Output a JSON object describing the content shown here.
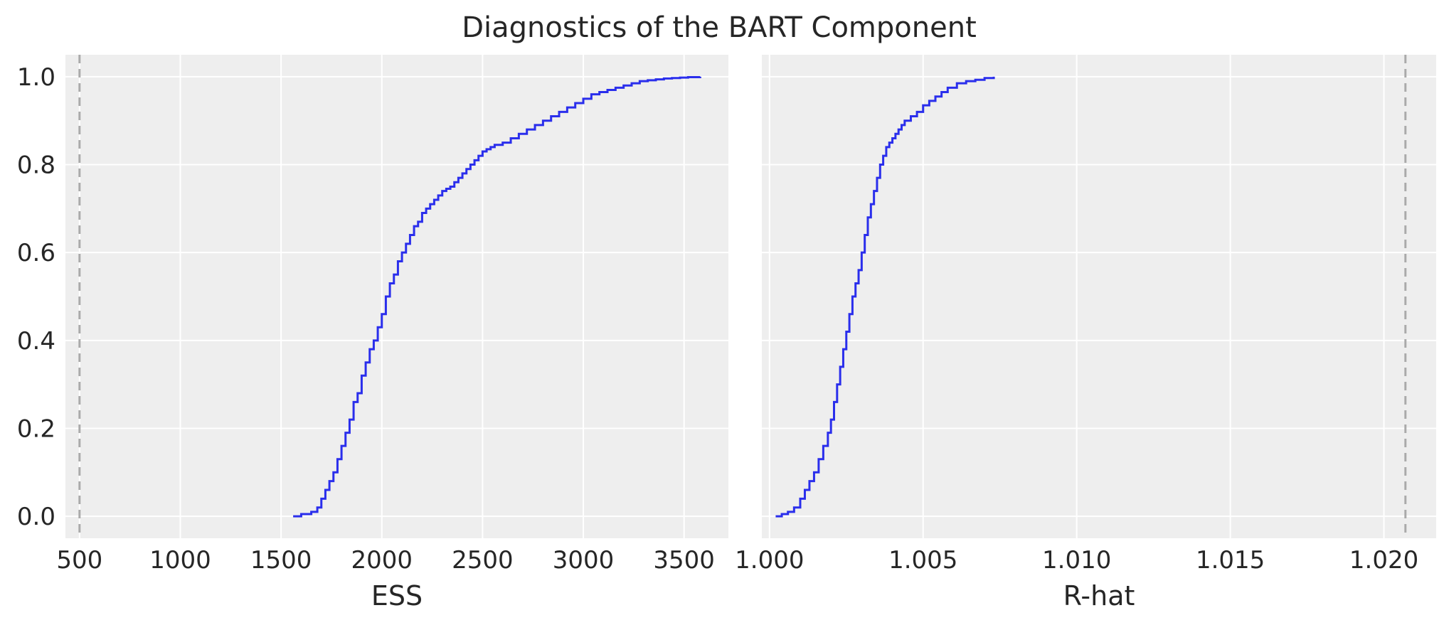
{
  "figure": {
    "title": "Diagnostics of the BART Component",
    "line_color": "#2a2eec",
    "reference_color": "#aaaaaa",
    "panel_bg": "#eeeeee"
  },
  "chart_data": [
    {
      "type": "line",
      "subtype": "ecdf-step",
      "xlabel": "ESS",
      "ylabel": "",
      "xlim": [
        430,
        3720
      ],
      "ylim": [
        -0.05,
        1.05
      ],
      "xticks": [
        500,
        1000,
        1500,
        2000,
        2500,
        3000,
        3500
      ],
      "xtick_labels": [
        "500",
        "1000",
        "1500",
        "2000",
        "2500",
        "3000",
        "3500"
      ],
      "yticks": [
        0.0,
        0.2,
        0.4,
        0.6,
        0.8,
        1.0
      ],
      "ytick_labels": [
        "0.0",
        "0.2",
        "0.4",
        "0.6",
        "0.8",
        "1.0"
      ],
      "reference_line_x": 500,
      "grid": true,
      "series": [
        {
          "x": [
            1560,
            1600,
            1650,
            1680,
            1700,
            1720,
            1740,
            1760,
            1780,
            1800,
            1820,
            1840,
            1860,
            1880,
            1900,
            1920,
            1940,
            1960,
            1980,
            2000,
            2020,
            2040,
            2060,
            2080,
            2100,
            2120,
            2140,
            2160,
            2180,
            2200,
            2220,
            2240,
            2260,
            2280,
            2300,
            2320,
            2340,
            2360,
            2380,
            2400,
            2420,
            2440,
            2460,
            2480,
            2500,
            2520,
            2540,
            2560,
            2600,
            2640,
            2680,
            2720,
            2760,
            2800,
            2840,
            2880,
            2920,
            2960,
            3000,
            3040,
            3080,
            3120,
            3160,
            3200,
            3240,
            3280,
            3320,
            3360,
            3400,
            3440,
            3480,
            3520,
            3580
          ],
          "y": [
            0.0,
            0.005,
            0.01,
            0.02,
            0.04,
            0.06,
            0.08,
            0.1,
            0.13,
            0.16,
            0.19,
            0.22,
            0.26,
            0.28,
            0.32,
            0.35,
            0.38,
            0.4,
            0.43,
            0.46,
            0.5,
            0.53,
            0.55,
            0.58,
            0.6,
            0.62,
            0.64,
            0.66,
            0.67,
            0.69,
            0.7,
            0.71,
            0.72,
            0.73,
            0.74,
            0.745,
            0.75,
            0.76,
            0.77,
            0.78,
            0.79,
            0.8,
            0.81,
            0.82,
            0.83,
            0.835,
            0.84,
            0.845,
            0.85,
            0.86,
            0.87,
            0.88,
            0.89,
            0.9,
            0.91,
            0.92,
            0.93,
            0.94,
            0.95,
            0.96,
            0.965,
            0.97,
            0.975,
            0.98,
            0.985,
            0.99,
            0.992,
            0.994,
            0.996,
            0.997,
            0.998,
            0.999,
            1.0
          ]
        }
      ]
    },
    {
      "type": "line",
      "subtype": "ecdf-step",
      "xlabel": "R-hat",
      "ylabel": "",
      "xlim": [
        0.99975,
        1.0217
      ],
      "ylim": [
        -0.05,
        1.05
      ],
      "xticks": [
        1.0,
        1.005,
        1.01,
        1.015,
        1.02
      ],
      "xtick_labels": [
        "1.000",
        "1.005",
        "1.010",
        "1.015",
        "1.020"
      ],
      "yticks": [
        0.0,
        0.2,
        0.4,
        0.6,
        0.8,
        1.0
      ],
      "ytick_labels": [],
      "reference_line_x": 1.0207,
      "grid": true,
      "series": [
        {
          "x": [
            1.0002,
            1.0004,
            1.0006,
            1.0008,
            1.001,
            1.00115,
            1.0013,
            1.00145,
            1.0016,
            1.00175,
            1.0019,
            1.002,
            1.0021,
            1.0022,
            1.0023,
            1.0024,
            1.0025,
            1.0026,
            1.0027,
            1.0028,
            1.0029,
            1.003,
            1.0031,
            1.0032,
            1.0033,
            1.0034,
            1.0035,
            1.0036,
            1.0037,
            1.0038,
            1.0039,
            1.004,
            1.0041,
            1.0042,
            1.0043,
            1.0044,
            1.0046,
            1.0048,
            1.005,
            1.0052,
            1.0054,
            1.0056,
            1.0058,
            1.0061,
            1.0064,
            1.0067,
            1.007,
            1.0073
          ],
          "y": [
            0.0,
            0.005,
            0.01,
            0.02,
            0.04,
            0.06,
            0.08,
            0.1,
            0.13,
            0.16,
            0.19,
            0.22,
            0.26,
            0.3,
            0.34,
            0.38,
            0.42,
            0.46,
            0.5,
            0.53,
            0.56,
            0.6,
            0.64,
            0.68,
            0.71,
            0.74,
            0.77,
            0.8,
            0.82,
            0.84,
            0.85,
            0.86,
            0.87,
            0.88,
            0.89,
            0.9,
            0.91,
            0.92,
            0.935,
            0.945,
            0.955,
            0.965,
            0.975,
            0.985,
            0.99,
            0.993,
            0.997,
            1.0
          ]
        }
      ]
    }
  ]
}
